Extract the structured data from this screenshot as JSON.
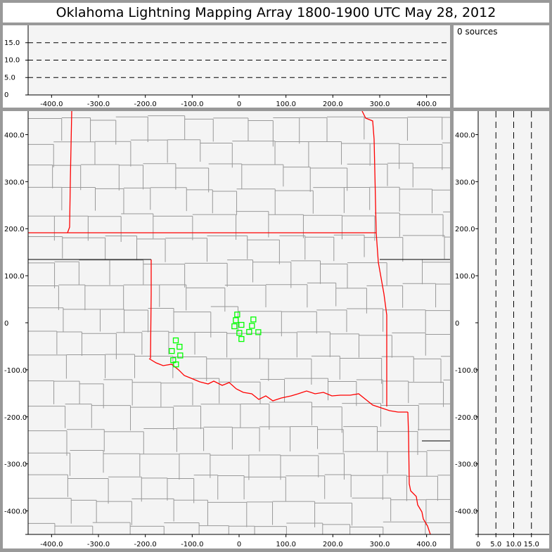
{
  "title": "Oklahoma Lightning Mapping Array   1800-1900 UTC  May 28, 2012",
  "info": {
    "source_count_label": "0 sources"
  },
  "colors": {
    "background": "#999999",
    "plot_bg": "#f4f4f4",
    "state_border": "#ff0000",
    "county_border": "#999999",
    "source_marker": "#00ff00"
  },
  "axes": {
    "x_km": {
      "range": [
        -450,
        450
      ],
      "ticks": [
        "-400.0",
        "-300.0",
        "-200.0",
        "-100.0",
        "0",
        "100.0",
        "200.0",
        "300.0",
        "400.0"
      ],
      "tick_values": [
        -400,
        -300,
        -200,
        -100,
        0,
        100,
        200,
        300,
        400
      ]
    },
    "y_km": {
      "range": [
        -450,
        450
      ],
      "ticks": [
        "400.0",
        "300.0",
        "200.0",
        "100.0",
        "0",
        "-100.0",
        "-200.0",
        "-300.0",
        "-400.0"
      ],
      "tick_values": [
        400,
        300,
        200,
        100,
        0,
        -100,
        -200,
        -300,
        -400
      ]
    },
    "alt_km": {
      "range": [
        0,
        20
      ],
      "ticks": [
        "0",
        "5.0",
        "10.0",
        "15.0"
      ],
      "tick_values": [
        0,
        5,
        10,
        15
      ],
      "dashed_lines": [
        5,
        10,
        15
      ]
    }
  },
  "chart_data": {
    "type": "scatter",
    "xlim": [
      -450,
      450
    ],
    "ylim": [
      -450,
      450
    ],
    "marker": "open-square",
    "points": [
      [
        -4,
        17.5
      ],
      [
        -7,
        5.5
      ],
      [
        30.5,
        7
      ],
      [
        -10,
        -7.5
      ],
      [
        5,
        -4.5
      ],
      [
        27.5,
        -6.5
      ],
      [
        0.5,
        -21.5
      ],
      [
        21.5,
        -19.5
      ],
      [
        41,
        -20
      ],
      [
        5,
        -34.5
      ],
      [
        -135,
        -37.5
      ],
      [
        -127,
        -51
      ],
      [
        -143.5,
        -60
      ],
      [
        -125.5,
        -69.5
      ],
      [
        -140.5,
        -79.5
      ],
      [
        -134.5,
        -88.5
      ]
    ]
  }
}
